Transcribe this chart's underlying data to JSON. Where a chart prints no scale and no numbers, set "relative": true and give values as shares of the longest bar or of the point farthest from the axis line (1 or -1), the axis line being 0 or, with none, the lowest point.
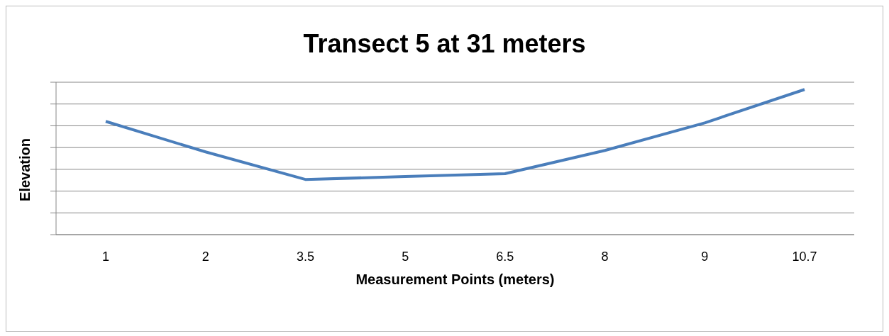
{
  "chart_data": {
    "type": "line",
    "title": "Transect 5 at 31 meters",
    "xlabel": "Measurement Points (meters)",
    "ylabel": "Elevation",
    "categories": [
      "1",
      "2",
      "3.5",
      "5",
      "6.5",
      "8",
      "9",
      "10.7"
    ],
    "series": [
      {
        "color": "#4a7ebb",
        "values": [
          0.78,
          0.57,
          0.38,
          0.4,
          0.42,
          0.58,
          0.77,
          1
        ]
      }
    ],
    "relative": true,
    "grid": "y",
    "legend": false,
    "marker": "none",
    "line_style": "solid"
  }
}
